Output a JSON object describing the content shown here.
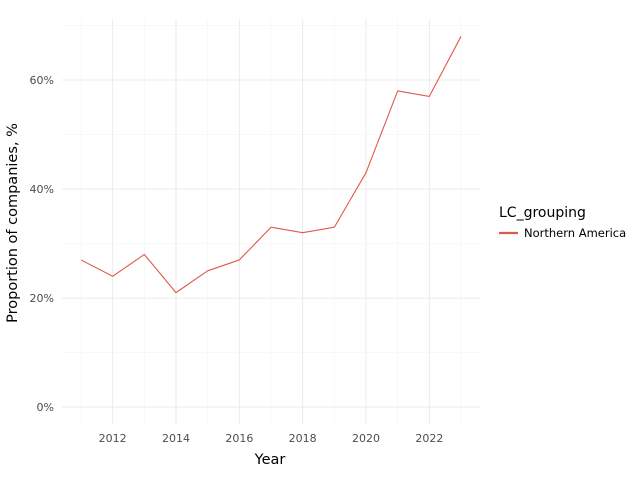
{
  "chart_data": {
    "type": "line",
    "xlabel": "Year",
    "ylabel": "Proportion of companies, %",
    "x": [
      2011,
      2012,
      2013,
      2014,
      2015,
      2016,
      2017,
      2018,
      2019,
      2020,
      2021,
      2022,
      2023
    ],
    "series": [
      {
        "name": "Northern America",
        "color": "#e05a4b",
        "values": [
          27,
          24,
          28,
          21,
          25,
          27,
          33,
          32,
          33,
          43,
          58,
          57,
          68
        ]
      }
    ],
    "xlim": [
      2010.4,
      2023.6
    ],
    "ylim": [
      -3.1,
      71.2
    ],
    "x_ticks": [
      2012,
      2014,
      2016,
      2018,
      2020,
      2022
    ],
    "x_tick_labels": [
      "2012",
      "2014",
      "2016",
      "2018",
      "2020",
      "2022"
    ],
    "y_ticks": [
      0,
      20,
      40,
      60
    ],
    "y_tick_labels": [
      "0%",
      "20%",
      "40%",
      "60%"
    ],
    "grid": true,
    "legend": {
      "title": "LC_grouping",
      "placement": "right"
    },
    "colors": {
      "grid_major": "#ebebeb",
      "grid_minor": "#f5f5f5",
      "background": "#ffffff"
    }
  }
}
